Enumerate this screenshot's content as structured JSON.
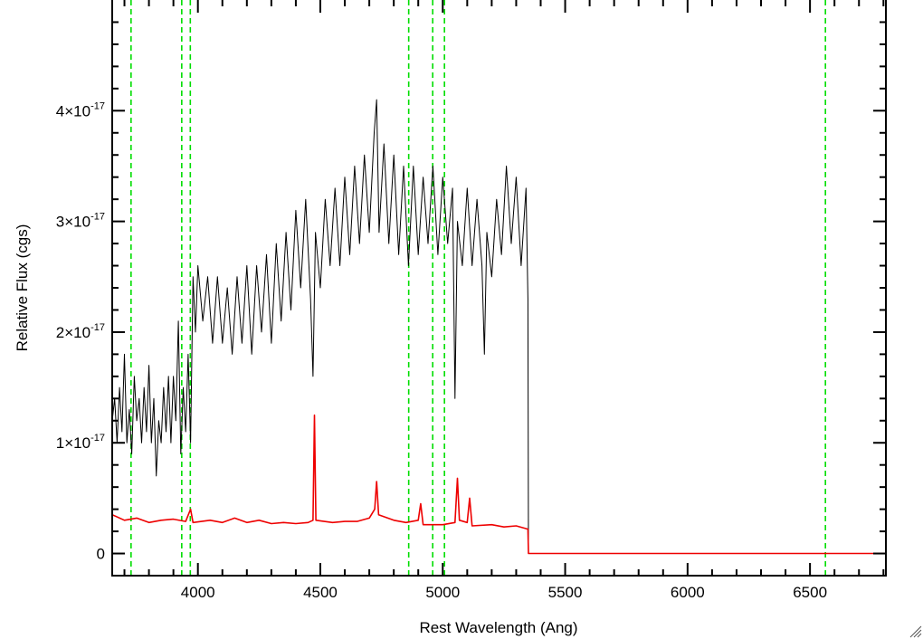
{
  "chart_data": {
    "type": "line",
    "xlabel": "Rest Wavelength (Ang)",
    "ylabel": "Relative Flux (cgs)",
    "xlim": [
      3650,
      6810
    ],
    "ylim": [
      -2e-18,
      5e-17
    ],
    "x_ticks": [
      {
        "value": 4000,
        "label": "4000"
      },
      {
        "value": 4500,
        "label": "4500"
      },
      {
        "value": 5000,
        "label": "5000"
      },
      {
        "value": 5500,
        "label": "5500"
      },
      {
        "value": 6000,
        "label": "6000"
      },
      {
        "value": 6500,
        "label": "6500"
      }
    ],
    "y_ticks": [
      {
        "value": 0,
        "mantissa": "0",
        "exponent": ""
      },
      {
        "value": 1e-17,
        "mantissa": "1×10",
        "exponent": "-17"
      },
      {
        "value": 2e-17,
        "mantissa": "2×10",
        "exponent": "-17"
      },
      {
        "value": 3e-17,
        "mantissa": "3×10",
        "exponent": "-17"
      },
      {
        "value": 4e-17,
        "mantissa": "4×10",
        "exponent": "-17"
      }
    ],
    "x_minor_step": 100,
    "y_minor_step": 2e-18,
    "grid": false,
    "vertical_markers": {
      "color": "#00dd00",
      "style": "dashed",
      "x": [
        3727,
        3934,
        3969,
        4861,
        4959,
        5007,
        6563
      ]
    },
    "series": [
      {
        "color": "#000000",
        "points": [
          [
            3650,
            1.2e-17
          ],
          [
            3660,
            1.4e-17
          ],
          [
            3670,
            1e-17
          ],
          [
            3680,
            1.5e-17
          ],
          [
            3690,
            1.1e-17
          ],
          [
            3700,
            1.8e-17
          ],
          [
            3710,
            1e-17
          ],
          [
            3720,
            1.3e-17
          ],
          [
            3730,
            9e-18
          ],
          [
            3740,
            1.6e-17
          ],
          [
            3750,
            1.2e-17
          ],
          [
            3760,
            1.4e-17
          ],
          [
            3770,
            1e-17
          ],
          [
            3780,
            1.5e-17
          ],
          [
            3790,
            1.1e-17
          ],
          [
            3800,
            1.7e-17
          ],
          [
            3810,
            1e-17
          ],
          [
            3820,
            1.4e-17
          ],
          [
            3830,
            7e-18
          ],
          [
            3840,
            1.2e-17
          ],
          [
            3850,
            1e-17
          ],
          [
            3860,
            1.5e-17
          ],
          [
            3870,
            1.1e-17
          ],
          [
            3880,
            1.6e-17
          ],
          [
            3890,
            1e-17
          ],
          [
            3900,
            1.6e-17
          ],
          [
            3910,
            1.2e-17
          ],
          [
            3920,
            2.1e-17
          ],
          [
            3930,
            9e-18
          ],
          [
            3940,
            1.5e-17
          ],
          [
            3950,
            1.1e-17
          ],
          [
            3960,
            1.8e-17
          ],
          [
            3970,
            1e-17
          ],
          [
            3980,
            2.5e-17
          ],
          [
            3990,
            2e-17
          ],
          [
            4000,
            2.6e-17
          ],
          [
            4020,
            2.1e-17
          ],
          [
            4040,
            2.5e-17
          ],
          [
            4060,
            1.9e-17
          ],
          [
            4080,
            2.5e-17
          ],
          [
            4100,
            1.9e-17
          ],
          [
            4120,
            2.4e-17
          ],
          [
            4140,
            1.8e-17
          ],
          [
            4160,
            2.5e-17
          ],
          [
            4180,
            1.9e-17
          ],
          [
            4200,
            2.6e-17
          ],
          [
            4220,
            1.8e-17
          ],
          [
            4240,
            2.6e-17
          ],
          [
            4260,
            2e-17
          ],
          [
            4280,
            2.7e-17
          ],
          [
            4300,
            1.9e-17
          ],
          [
            4320,
            2.8e-17
          ],
          [
            4340,
            2.1e-17
          ],
          [
            4360,
            2.9e-17
          ],
          [
            4380,
            2.2e-17
          ],
          [
            4400,
            3.1e-17
          ],
          [
            4420,
            2.4e-17
          ],
          [
            4440,
            3.2e-17
          ],
          [
            4460,
            2.3e-17
          ],
          [
            4470,
            1.6e-17
          ],
          [
            4480,
            2.9e-17
          ],
          [
            4500,
            2.4e-17
          ],
          [
            4520,
            3.2e-17
          ],
          [
            4540,
            2.6e-17
          ],
          [
            4560,
            3.3e-17
          ],
          [
            4580,
            2.6e-17
          ],
          [
            4600,
            3.4e-17
          ],
          [
            4620,
            2.7e-17
          ],
          [
            4640,
            3.5e-17
          ],
          [
            4660,
            2.8e-17
          ],
          [
            4680,
            3.6e-17
          ],
          [
            4700,
            2.9e-17
          ],
          [
            4720,
            3.8e-17
          ],
          [
            4730,
            4.1e-17
          ],
          [
            4740,
            2.9e-17
          ],
          [
            4760,
            3.7e-17
          ],
          [
            4780,
            2.8e-17
          ],
          [
            4800,
            3.6e-17
          ],
          [
            4820,
            2.7e-17
          ],
          [
            4840,
            3.5e-17
          ],
          [
            4860,
            2.6e-17
          ],
          [
            4880,
            3.5e-17
          ],
          [
            4900,
            2.7e-17
          ],
          [
            4920,
            3.4e-17
          ],
          [
            4940,
            2.8e-17
          ],
          [
            4960,
            3.5e-17
          ],
          [
            4980,
            2.7e-17
          ],
          [
            5000,
            3.4e-17
          ],
          [
            5020,
            2.8e-17
          ],
          [
            5040,
            3.3e-17
          ],
          [
            5050,
            1.4e-17
          ],
          [
            5060,
            3e-17
          ],
          [
            5080,
            2.6e-17
          ],
          [
            5100,
            3.3e-17
          ],
          [
            5120,
            2.6e-17
          ],
          [
            5140,
            3.2e-17
          ],
          [
            5160,
            2.6e-17
          ],
          [
            5170,
            1.8e-17
          ],
          [
            5180,
            2.9e-17
          ],
          [
            5200,
            2.5e-17
          ],
          [
            5220,
            3.2e-17
          ],
          [
            5240,
            2.7e-17
          ],
          [
            5260,
            3.5e-17
          ],
          [
            5280,
            2.8e-17
          ],
          [
            5300,
            3.4e-17
          ],
          [
            5320,
            2.6e-17
          ],
          [
            5340,
            3.3e-17
          ],
          [
            5348,
            2.3e-17
          ],
          [
            5350,
            0.0
          ],
          [
            6810,
            0.0
          ]
        ]
      },
      {
        "color": "#ee0000",
        "points": [
          [
            3650,
            3.5e-18
          ],
          [
            3700,
            3e-18
          ],
          [
            3750,
            3.2e-18
          ],
          [
            3800,
            2.8e-18
          ],
          [
            3850,
            3e-18
          ],
          [
            3900,
            3.1e-18
          ],
          [
            3950,
            2.9e-18
          ],
          [
            3970,
            4e-18
          ],
          [
            3980,
            2.8e-18
          ],
          [
            4050,
            3e-18
          ],
          [
            4100,
            2.8e-18
          ],
          [
            4150,
            3.2e-18
          ],
          [
            4200,
            2.8e-18
          ],
          [
            4250,
            3e-18
          ],
          [
            4300,
            2.7e-18
          ],
          [
            4350,
            2.8e-18
          ],
          [
            4400,
            2.7e-18
          ],
          [
            4450,
            2.8e-18
          ],
          [
            4470,
            3e-18
          ],
          [
            4476,
            1.25e-17
          ],
          [
            4482,
            3e-18
          ],
          [
            4550,
            2.8e-18
          ],
          [
            4600,
            2.9e-18
          ],
          [
            4650,
            2.9e-18
          ],
          [
            4700,
            3.2e-18
          ],
          [
            4722,
            4e-18
          ],
          [
            4730,
            6.5e-18
          ],
          [
            4738,
            3.5e-18
          ],
          [
            4800,
            3e-18
          ],
          [
            4850,
            2.8e-18
          ],
          [
            4900,
            3e-18
          ],
          [
            4910,
            4.5e-18
          ],
          [
            4920,
            2.6e-18
          ],
          [
            5000,
            2.6e-18
          ],
          [
            5050,
            2.8e-18
          ],
          [
            5060,
            6.8e-18
          ],
          [
            5068,
            3e-18
          ],
          [
            5100,
            2.8e-18
          ],
          [
            5110,
            5e-18
          ],
          [
            5120,
            2.5e-18
          ],
          [
            5200,
            2.6e-18
          ],
          [
            5250,
            2.4e-18
          ],
          [
            5300,
            2.5e-18
          ],
          [
            5348,
            2.2e-18
          ],
          [
            5350,
            0.0
          ],
          [
            6810,
            0.0
          ]
        ]
      }
    ]
  }
}
